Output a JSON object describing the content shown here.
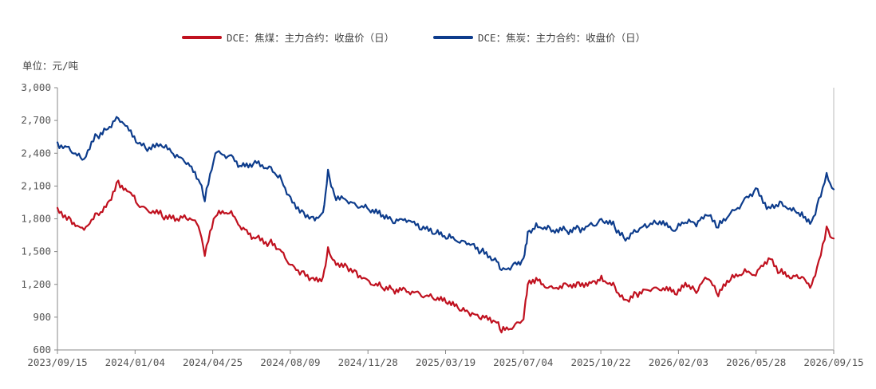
{
  "chart_data": {
    "type": "line",
    "title": "",
    "unit_label": "单位：元/吨",
    "xlabel": "",
    "ylabel": "",
    "ylim": [
      600,
      3000
    ],
    "y_ticks": [
      600,
      900,
      1200,
      1500,
      1800,
      2100,
      2400,
      2700,
      3000
    ],
    "y_tick_labels": [
      "600",
      "900",
      "1,200",
      "1,500",
      "1,800",
      "2,100",
      "2,400",
      "2,700",
      "3,000"
    ],
    "x_tick_labels": [
      "2023/09/15",
      "2024/01/04",
      "2024/04/25",
      "2024/08/09",
      "2024/11/28",
      "2025/03/19",
      "2025/07/04",
      "2025/10/22",
      "2026/02/03",
      "2026/05/28",
      "2026/09/15"
    ],
    "grid": false,
    "legend_position": "top-center",
    "series": [
      {
        "name": "DCE：焦煤：主力合约：收盘价（日）",
        "color": "#c0111f",
        "x": [
          "2023/09/15",
          "2023/10/01",
          "2023/10/20",
          "2023/11/10",
          "2023/11/25",
          "2023/12/10",
          "2024/01/04",
          "2024/01/20",
          "2024/02/10",
          "2024/02/28",
          "2024/03/15",
          "2024/04/01",
          "2024/04/10",
          "2024/04/25",
          "2024/05/15",
          "2024/06/01",
          "2024/06/20",
          "2024/07/10",
          "2024/07/25",
          "2024/08/09",
          "2024/08/25",
          "2024/09/10",
          "2024/09/24",
          "2024/10/01",
          "2024/10/10",
          "2024/10/25",
          "2024/11/10",
          "2024/11/28",
          "2024/12/15",
          "2025/01/01",
          "2025/01/20",
          "2025/02/10",
          "2025/02/28",
          "2025/03/19",
          "2025/04/05",
          "2025/04/20",
          "2025/05/05",
          "2025/05/25",
          "2025/06/03",
          "2025/06/20",
          "2025/07/04",
          "2025/07/10",
          "2025/07/22",
          "2025/08/10",
          "2025/09/01",
          "2025/09/20",
          "2025/10/10",
          "2025/10/22",
          "2025/11/10",
          "2025/11/25",
          "2025/12/10",
          "2025/12/25",
          "2026/01/10",
          "2026/02/03",
          "2026/02/20",
          "2026/03/05",
          "2026/03/20",
          "2026/04/05",
          "2026/04/20",
          "2026/05/10",
          "2026/05/28",
          "2026/06/15",
          "2026/07/01",
          "2026/07/20",
          "2026/08/01",
          "2026/08/15",
          "2026/08/25",
          "2026/09/05",
          "2026/09/15"
        ],
        "values": [
          1900,
          1820,
          1720,
          1850,
          1950,
          2150,
          1950,
          1880,
          1820,
          1780,
          1800,
          1730,
          1460,
          1820,
          1850,
          1700,
          1620,
          1580,
          1520,
          1380,
          1320,
          1260,
          1270,
          1540,
          1420,
          1390,
          1320,
          1230,
          1180,
          1150,
          1130,
          1090,
          1060,
          1020,
          960,
          910,
          880,
          860,
          760,
          810,
          880,
          1200,
          1260,
          1180,
          1210,
          1220,
          1230,
          1280,
          1180,
          1060,
          1120,
          1150,
          1160,
          1110,
          1180,
          1120,
          1250,
          1090,
          1220,
          1300,
          1280,
          1440,
          1310,
          1280,
          1270,
          1200,
          1420,
          1730,
          1620
        ]
      },
      {
        "name": "DCE：焦炭：主力合约：收盘价（日）",
        "color": "#0d3c8c",
        "x": [
          "2023/09/15",
          "2023/10/01",
          "2023/10/20",
          "2023/11/10",
          "2023/11/25",
          "2023/12/10",
          "2024/01/04",
          "2024/01/20",
          "2024/02/10",
          "2024/02/28",
          "2024/03/15",
          "2024/04/01",
          "2024/04/10",
          "2024/04/25",
          "2024/05/15",
          "2024/06/01",
          "2024/06/20",
          "2024/07/10",
          "2024/07/25",
          "2024/08/09",
          "2024/08/25",
          "2024/09/10",
          "2024/09/24",
          "2024/10/01",
          "2024/10/10",
          "2024/10/25",
          "2024/11/10",
          "2024/11/28",
          "2024/12/15",
          "2025/01/01",
          "2025/01/20",
          "2025/02/10",
          "2025/02/28",
          "2025/03/19",
          "2025/04/05",
          "2025/04/20",
          "2025/05/05",
          "2025/05/25",
          "2025/06/03",
          "2025/06/20",
          "2025/07/04",
          "2025/07/10",
          "2025/07/22",
          "2025/08/10",
          "2025/09/01",
          "2025/09/20",
          "2025/10/10",
          "2025/10/22",
          "2025/11/10",
          "2025/11/25",
          "2025/12/10",
          "2025/12/25",
          "2026/01/10",
          "2026/02/03",
          "2026/02/20",
          "2026/03/05",
          "2026/03/20",
          "2026/04/05",
          "2026/04/20",
          "2026/05/10",
          "2026/05/28",
          "2026/06/15",
          "2026/07/01",
          "2026/07/20",
          "2026/08/01",
          "2026/08/15",
          "2026/08/25",
          "2026/09/05",
          "2026/09/15"
        ],
        "values": [
          2500,
          2460,
          2340,
          2560,
          2620,
          2720,
          2500,
          2420,
          2460,
          2360,
          2300,
          2160,
          1960,
          2400,
          2380,
          2280,
          2330,
          2280,
          2200,
          2000,
          1880,
          1820,
          1860,
          2250,
          2020,
          1980,
          1920,
          1880,
          1820,
          1760,
          1770,
          1700,
          1660,
          1620,
          1580,
          1560,
          1500,
          1440,
          1330,
          1390,
          1440,
          1680,
          1760,
          1720,
          1700,
          1720,
          1740,
          1800,
          1720,
          1600,
          1680,
          1720,
          1750,
          1690,
          1760,
          1730,
          1830,
          1720,
          1830,
          1960,
          2080,
          1910,
          1960,
          1900,
          1860,
          1780,
          1990,
          2220,
          2070
        ]
      }
    ]
  }
}
